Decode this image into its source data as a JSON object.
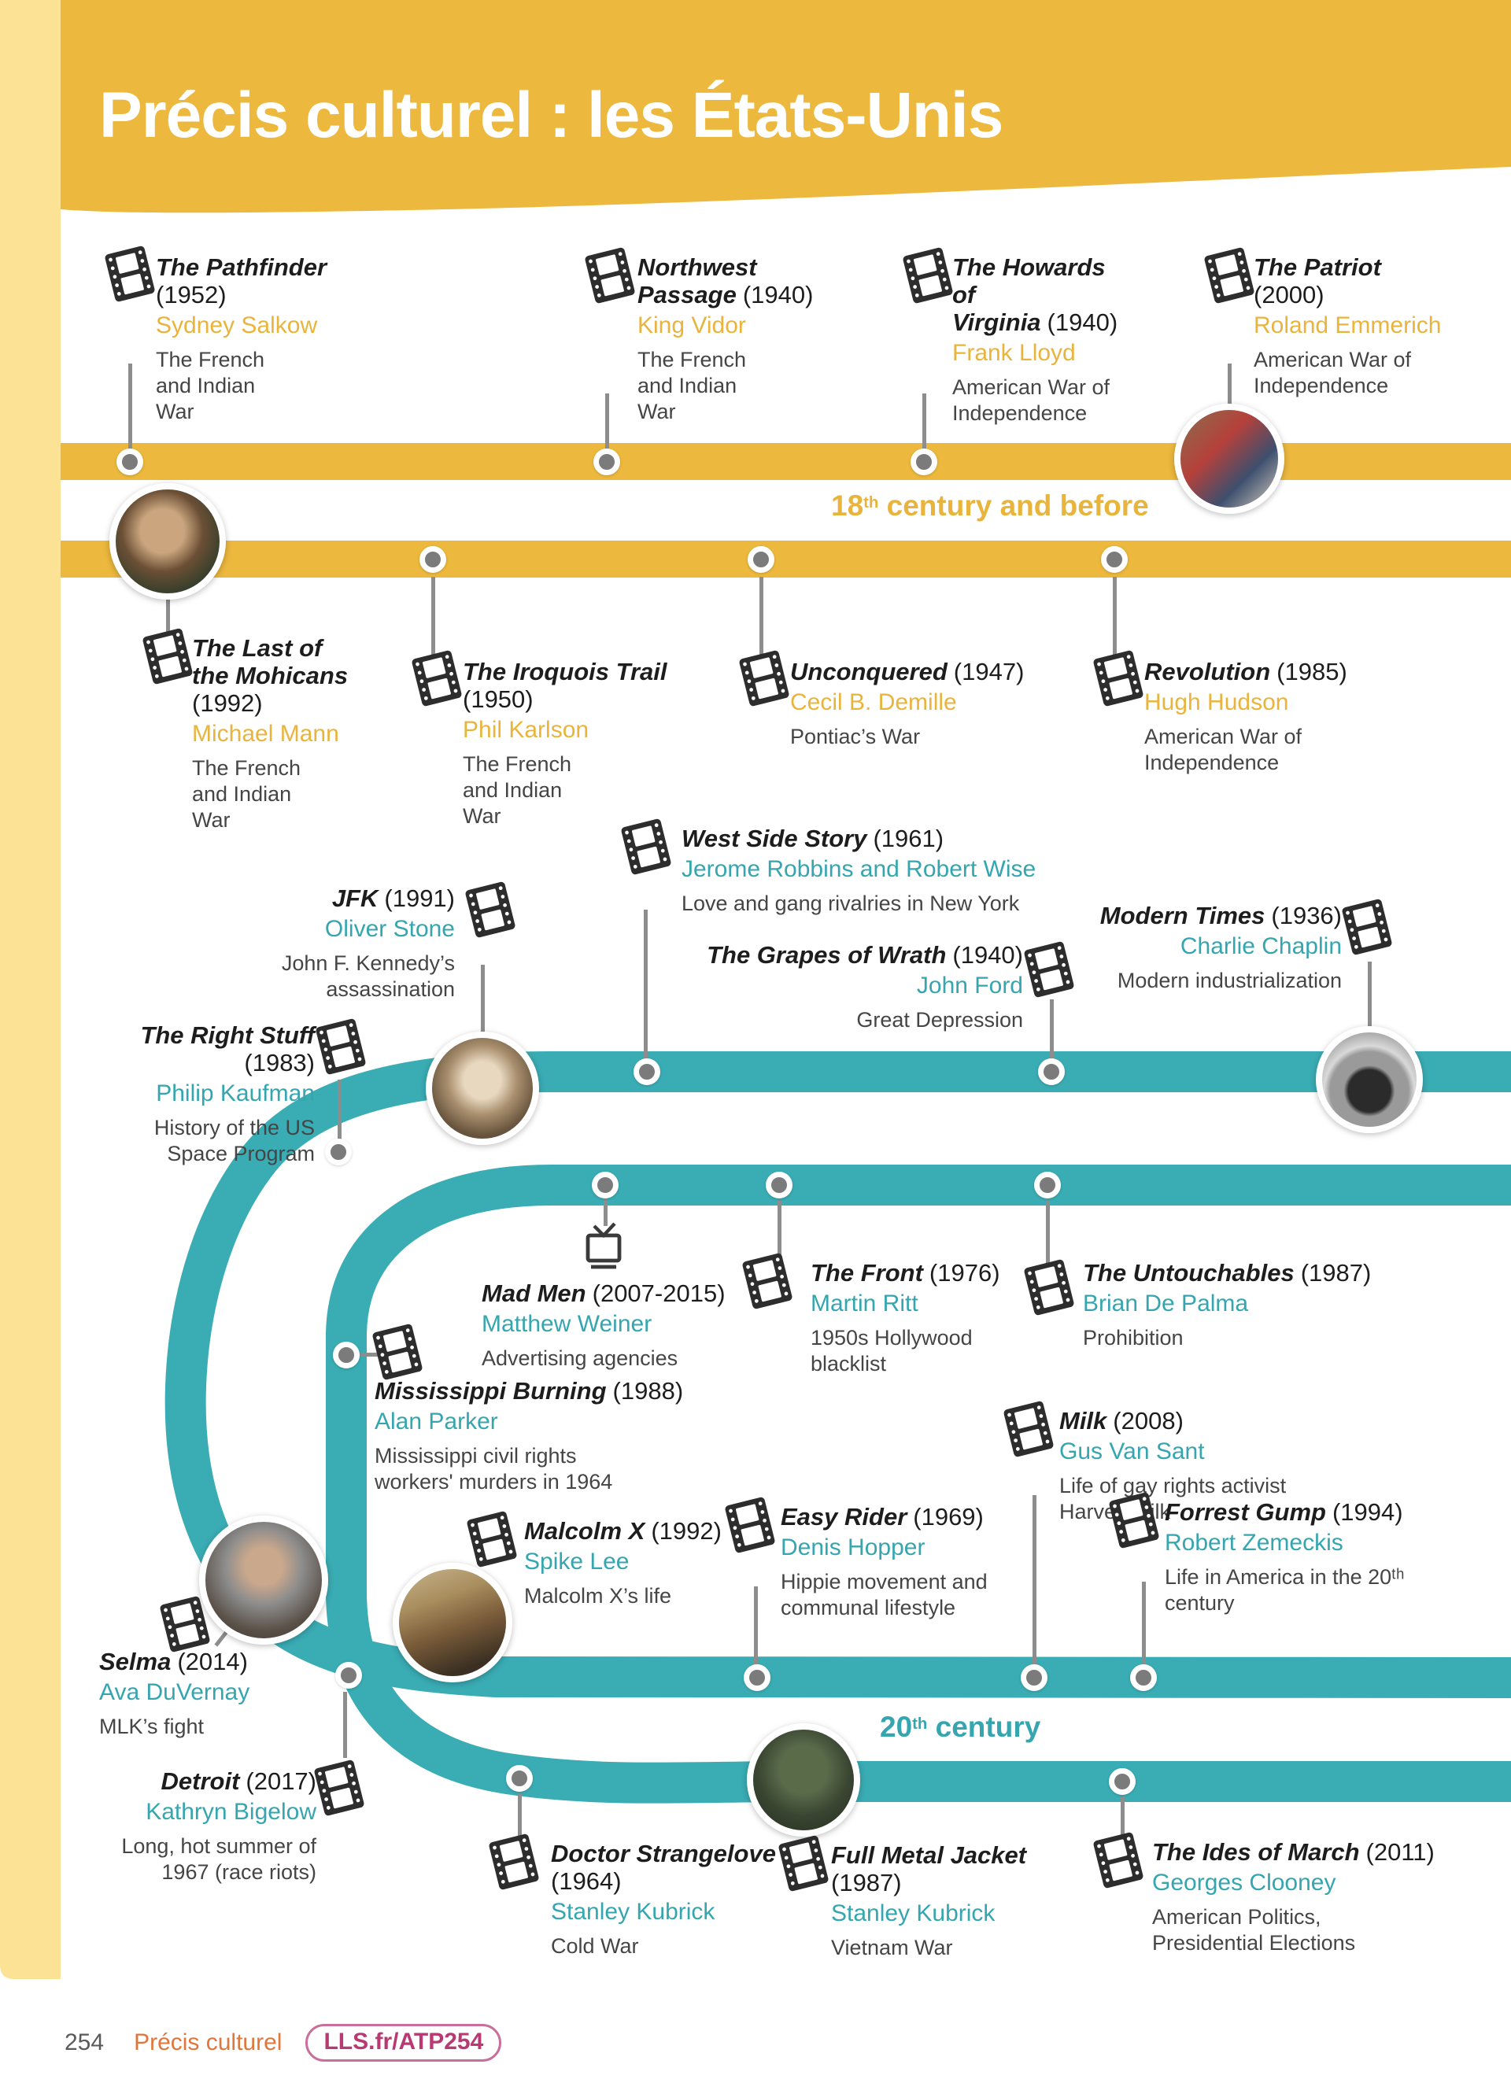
{
  "header": {
    "title": "Précis culturel : les États-Unis"
  },
  "eras": {
    "e1": {
      "num": "18",
      "sup": "th",
      "rest": " century and before"
    },
    "e2": {
      "num": "20",
      "sup": "th",
      "rest": " century"
    }
  },
  "colors": {
    "gold_band": "#ecb83d",
    "gold_pale": "#fbe294",
    "gold_text": "#e9b43c",
    "teal_band": "#3aacb4",
    "teal_text": "#35a6b0",
    "footer_orange": "#e0763c",
    "footer_magenta": "#b83a72"
  },
  "films": [
    {
      "title": "The Pathfinder",
      "year": "(1952)",
      "director": "Sydney Salkow",
      "desc": "The French and Indian War"
    },
    {
      "title": "Northwest Passage",
      "year": "(1940)",
      "director": "King Vidor",
      "desc": "The French and Indian War"
    },
    {
      "title": "The Howards of Virginia",
      "year": "(1940)",
      "director": "Frank Lloyd",
      "desc": "American War of Independence"
    },
    {
      "title": "The Patriot",
      "year": "(2000)",
      "director": "Roland Emmerich",
      "desc": "American War of Independence"
    },
    {
      "title": "The Last of the Mohicans",
      "year": "(1992)",
      "director": "Michael Mann",
      "desc": "The French and Indian War"
    },
    {
      "title": "The Iroquois Trail",
      "year": "(1950)",
      "director": "Phil Karlson",
      "desc": "The French and Indian War"
    },
    {
      "title": "Unconquered",
      "year": "(1947)",
      "director": "Cecil B. Demille",
      "desc": "Pontiac’s War"
    },
    {
      "title": "Revolution",
      "year": "(1985)",
      "director": "Hugh Hudson",
      "desc": "American War of Independence"
    },
    {
      "title": "West Side Story",
      "year": "(1961)",
      "director": "Jerome Robbins and Robert Wise",
      "desc": "Love and gang rivalries in New York"
    },
    {
      "title": "JFK",
      "year": "(1991)",
      "director": "Oliver Stone",
      "desc": "John F. Kennedy’s assassination"
    },
    {
      "title": "The Grapes of Wrath",
      "year": "(1940)",
      "director": "John Ford",
      "desc": "Great Depression"
    },
    {
      "title": "Modern Times",
      "year": "(1936)",
      "director": "Charlie Chaplin",
      "desc": "Modern industrialization"
    },
    {
      "title": "The Right Stuff",
      "year": "(1983)",
      "director": "Philip Kaufman",
      "desc": "History of the US Space Program"
    },
    {
      "title": "Mad Men",
      "year": "(2007-2015)",
      "director": "Matthew Weiner",
      "desc": "Advertising agencies"
    },
    {
      "title": "The Front",
      "year": "(1976)",
      "director": "Martin Ritt",
      "desc": "1950s Hollywood blacklist"
    },
    {
      "title": "The Untouchables",
      "year": "(1987)",
      "director": "Brian De Palma",
      "desc": "Prohibition"
    },
    {
      "title": "Mississippi Burning",
      "year": "(1988)",
      "director": "Alan Parker",
      "desc": "Mississippi civil rights workers' murders in 1964"
    },
    {
      "title": "Milk",
      "year": "(2008)",
      "director": "Gus Van Sant",
      "desc": "Life of gay rights activist Harvey Milk"
    },
    {
      "title": "Malcolm X",
      "year": "(1992)",
      "director": "Spike Lee",
      "desc": "Malcolm X’s life"
    },
    {
      "title": "Easy Rider",
      "year": "(1969)",
      "director": "Denis Hopper",
      "desc": "Hippie movement and communal lifestyle"
    },
    {
      "title": "Forrest Gump",
      "year": "(1994)",
      "director": "Robert Zemeckis",
      "desc": "Life in America in the 20ᵗʰ century"
    },
    {
      "title": "Selma",
      "year": "(2014)",
      "director": "Ava DuVernay",
      "desc": "MLK’s fight"
    },
    {
      "title": "Detroit",
      "year": "(2017)",
      "director": "Kathryn Bigelow",
      "desc": "Long, hot summer of 1967 (race riots)"
    },
    {
      "title": "Doctor Strangelove",
      "year": "(1964)",
      "director": "Stanley Kubrick",
      "desc": "Cold War"
    },
    {
      "title": "Full Metal Jacket",
      "year": "(1987)",
      "director": "Stanley Kubrick",
      "desc": "Vietnam War"
    },
    {
      "title": "The Ides of March",
      "year": "(2011)",
      "director": "Georges Clooney",
      "desc": "American Politics, Presidential Elections"
    }
  ],
  "footer": {
    "page": "254",
    "section": "Précis culturel",
    "code": "LLS.fr/ATP254"
  }
}
